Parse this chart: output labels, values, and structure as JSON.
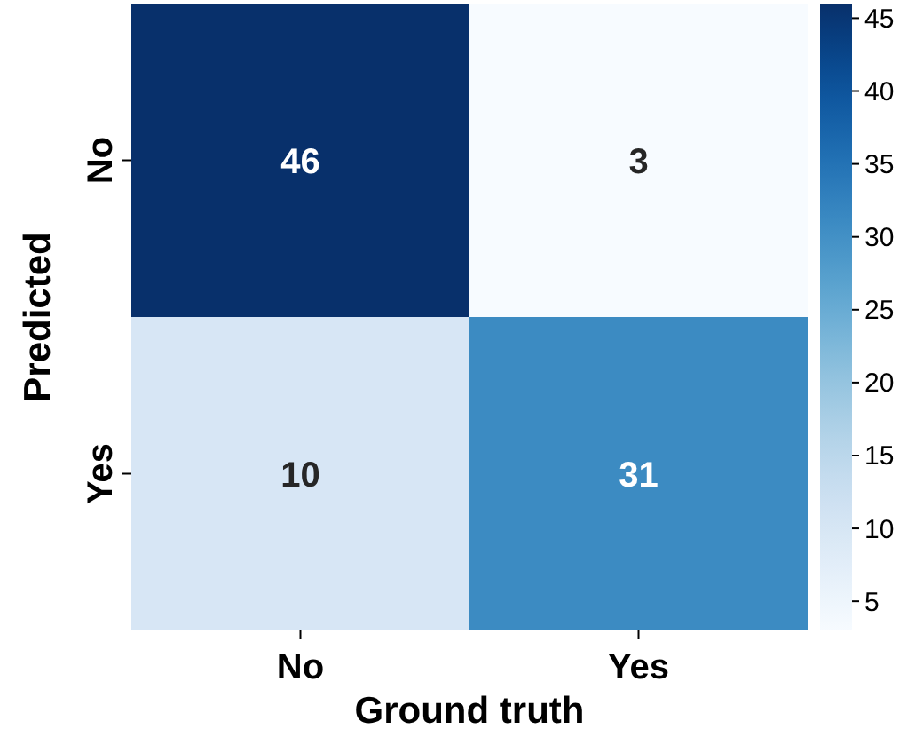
{
  "chart_data": {
    "type": "heatmap",
    "xlabel": "Ground truth",
    "ylabel": "Predicted",
    "categories": [
      "No",
      "Yes"
    ],
    "y_categories": [
      "No",
      "Yes"
    ],
    "cells": [
      [
        46,
        3
      ],
      [
        10,
        31
      ]
    ],
    "data_labels": true,
    "clim": [
      3,
      46
    ],
    "cticks": [
      5,
      10,
      15,
      20,
      25,
      30,
      35,
      40,
      45
    ]
  }
}
